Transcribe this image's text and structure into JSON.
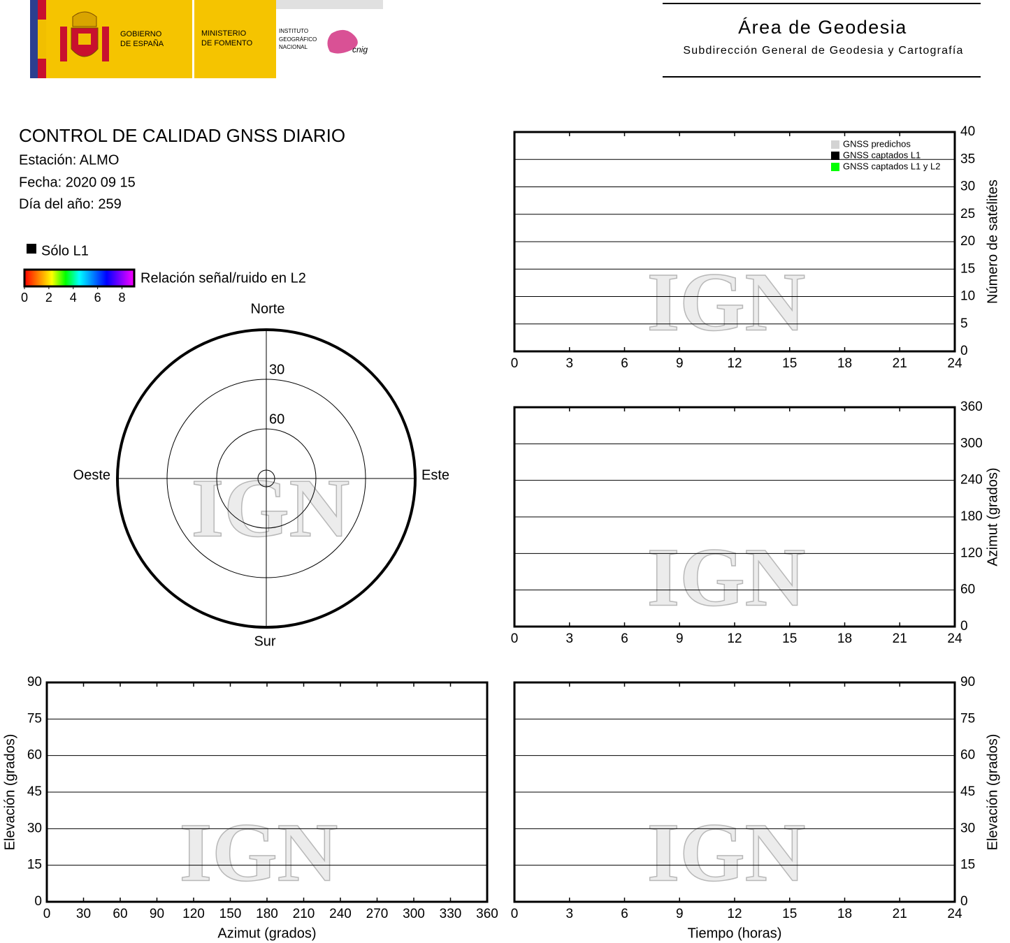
{
  "header": {
    "gobierno": [
      "GOBIERNO",
      "DE ESPAÑA"
    ],
    "ministerio": [
      "MINISTERIO",
      "DE FOMENTO"
    ],
    "instituto": [
      "INSTITUTO",
      "GEOGRÁFICO",
      "NACIONAL"
    ],
    "cnig": "cnig",
    "area": "Área de Geodesia",
    "subdireccion": "Subdirección General de Geodesia y Cartografía"
  },
  "info": {
    "title": "CONTROL DE CALIDAD GNSS DIARIO",
    "station": "Estación: ALMO",
    "date": "Fecha: 2020 09 15",
    "day_of_year": "Día del año: 259"
  },
  "chart_data": [
    {
      "type": "polar",
      "watermark": "IGN",
      "directions": {
        "north": "Norte",
        "south": "Sur",
        "east": "Este",
        "west": "Oeste"
      },
      "rlim": [
        90,
        0
      ],
      "rticks": [
        30,
        60
      ],
      "l1_only": {
        "label": "Sólo L1",
        "color": "#000000"
      },
      "colorbar": {
        "label": "Relación señal/ruido en L2",
        "lim": [
          0,
          9
        ],
        "ticks": [
          0,
          2,
          4,
          6,
          8
        ],
        "colors": [
          "#ff0000",
          "#ff8000",
          "#ffff00",
          "#00ff00",
          "#00ffff",
          "#0080ff",
          "#0000ff",
          "#8000ff",
          "#ff00ff"
        ]
      }
    },
    {
      "type": "line",
      "watermark": "IGN",
      "ylabel": "Número de satélites",
      "y_axis_position": "right",
      "xlim": [
        0,
        24
      ],
      "xticks": [
        0,
        3,
        6,
        9,
        12,
        15,
        18,
        21,
        24
      ],
      "ylim": [
        0,
        40
      ],
      "yticks": [
        0,
        5,
        10,
        15,
        20,
        25,
        30,
        35,
        40
      ],
      "grid": true,
      "legend": "upper right",
      "x": [],
      "series": [
        {
          "name": "GNSS predichos",
          "color": "#d3d3d3",
          "values": []
        },
        {
          "name": "GNSS captados L1",
          "color": "#000000",
          "values": []
        },
        {
          "name": "GNSS captados L1 y L2",
          "color": "#00ff00",
          "values": []
        }
      ]
    },
    {
      "type": "scatter",
      "watermark": "IGN",
      "ylabel": "Azimut (grados)",
      "y_axis_position": "right",
      "xlim": [
        0,
        24
      ],
      "xticks": [
        0,
        3,
        6,
        9,
        12,
        15,
        18,
        21,
        24
      ],
      "ylim": [
        0,
        360
      ],
      "yticks": [
        0,
        60,
        120,
        180,
        240,
        300,
        360
      ],
      "grid": true
    },
    {
      "type": "scatter",
      "watermark": "IGN",
      "xlabel": "Azimut (grados)",
      "ylabel": "Elevación (grados)",
      "y_axis_position": "left",
      "xlim": [
        0,
        360
      ],
      "xticks": [
        0,
        30,
        60,
        90,
        120,
        150,
        180,
        210,
        240,
        270,
        300,
        330,
        360
      ],
      "ylim": [
        0,
        90
      ],
      "yticks": [
        0,
        15,
        30,
        45,
        60,
        75,
        90
      ],
      "grid": true
    },
    {
      "type": "scatter",
      "watermark": "IGN",
      "xlabel": "Tiempo (horas)",
      "ylabel": "Elevación (grados)",
      "y_axis_position": "right",
      "xlim": [
        0,
        24
      ],
      "xticks": [
        0,
        3,
        6,
        9,
        12,
        15,
        18,
        21,
        24
      ],
      "ylim": [
        0,
        90
      ],
      "yticks": [
        0,
        15,
        30,
        45,
        60,
        75,
        90
      ],
      "grid": true
    }
  ]
}
